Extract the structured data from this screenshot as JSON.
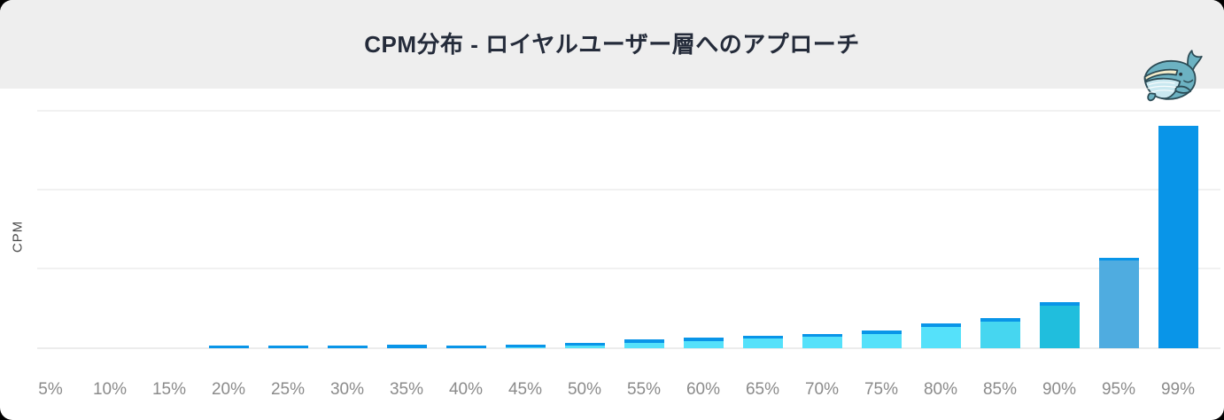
{
  "card": {
    "title": "CPM分布 - ロイヤルユーザー層へのアプローチ",
    "mascot_icon": "whale-icon"
  },
  "chart_data": {
    "type": "bar",
    "title": "CPM分布 - ロイヤルユーザー層へのアプローチ",
    "xlabel": "",
    "ylabel": "CPM",
    "categories": [
      "5%",
      "10%",
      "15%",
      "20%",
      "25%",
      "30%",
      "35%",
      "40%",
      "45%",
      "50%",
      "55%",
      "60%",
      "65%",
      "70%",
      "75%",
      "80%",
      "85%",
      "90%",
      "95%",
      "99%"
    ],
    "values": [
      0,
      0,
      0,
      3,
      3,
      3.5,
      4,
      3.5,
      5,
      7,
      11,
      13.5,
      16,
      18.5,
      22,
      31,
      38,
      58,
      115,
      282
    ],
    "ylim": [
      0,
      300
    ],
    "grid": "horizontal",
    "legend": "none",
    "y_tick_labels": [],
    "bar_colors": [
      "#55e1fa",
      "#55e1fa",
      "#55e1fa",
      "#55e1fa",
      "#55e1fa",
      "#55e1fa",
      "#55e1fa",
      "#55e1fa",
      "#55e1fa",
      "#55e1fa",
      "#55e1fa",
      "#55e1fa",
      "#55e1fa",
      "#55e1fa",
      "#55e1fa",
      "#55e1fa",
      "#46d6f0",
      "#20bedd",
      "#4face0",
      "#0995e8"
    ],
    "bar_cap_color": "#0995e8"
  },
  "colors": {
    "header_bg": "#eeeeee",
    "title_color": "#242b3a",
    "grid_color": "#f1f1f1",
    "baseline_color": "#ececec",
    "xlabel_color": "#8b8b8b",
    "accent_blue": "#0995e8",
    "whale_body": "#6cb2c2",
    "whale_belly": "#c9e8f0",
    "whale_mouth_stripe": "#f3ecca",
    "whale_outline": "#2c4b55"
  }
}
